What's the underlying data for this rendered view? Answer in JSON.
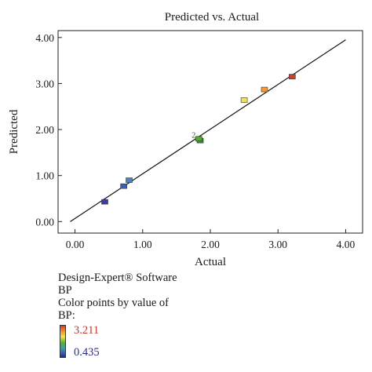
{
  "chart_data": {
    "type": "scatter",
    "title": "Predicted vs. Actual",
    "xlabel": "Actual",
    "ylabel": "Predicted",
    "xlim": [
      -0.25,
      4.25
    ],
    "ylim": [
      -0.25,
      4.15
    ],
    "xticks": [
      "0.00",
      "1.00",
      "2.00",
      "3.00",
      "4.00"
    ],
    "yticks": [
      "0.00",
      "1.00",
      "2.00",
      "3.00",
      "4.00"
    ],
    "reference_line": {
      "from": [
        -0.07,
        0.0
      ],
      "to": [
        4.0,
        3.95
      ]
    },
    "points": [
      {
        "x": 0.44,
        "y": 0.43,
        "color": "#3a3f9a"
      },
      {
        "x": 0.72,
        "y": 0.77,
        "color": "#3d5fb0"
      },
      {
        "x": 0.8,
        "y": 0.9,
        "color": "#4a84c4"
      },
      {
        "x": 1.85,
        "y": 1.76,
        "color": "#3f8f3f"
      },
      {
        "x": 1.83,
        "y": 1.8,
        "color": "#5aa83a"
      },
      {
        "x": 2.5,
        "y": 2.64,
        "color": "#f2e34a"
      },
      {
        "x": 2.8,
        "y": 2.87,
        "color": "#f29a2e"
      },
      {
        "x": 3.21,
        "y": 3.15,
        "color": "#d83a2a"
      }
    ],
    "replicate_label": {
      "text": "2",
      "x": 1.76,
      "y": 1.86
    }
  },
  "legend": {
    "software": "Design-Expert® Software",
    "response": "BP",
    "color_caption": "Color points by value of",
    "color_variable": "BP:",
    "max_value": "3.211",
    "min_value": "0.435",
    "max_color": "#c0392b",
    "min_color": "#2c2c8a"
  }
}
